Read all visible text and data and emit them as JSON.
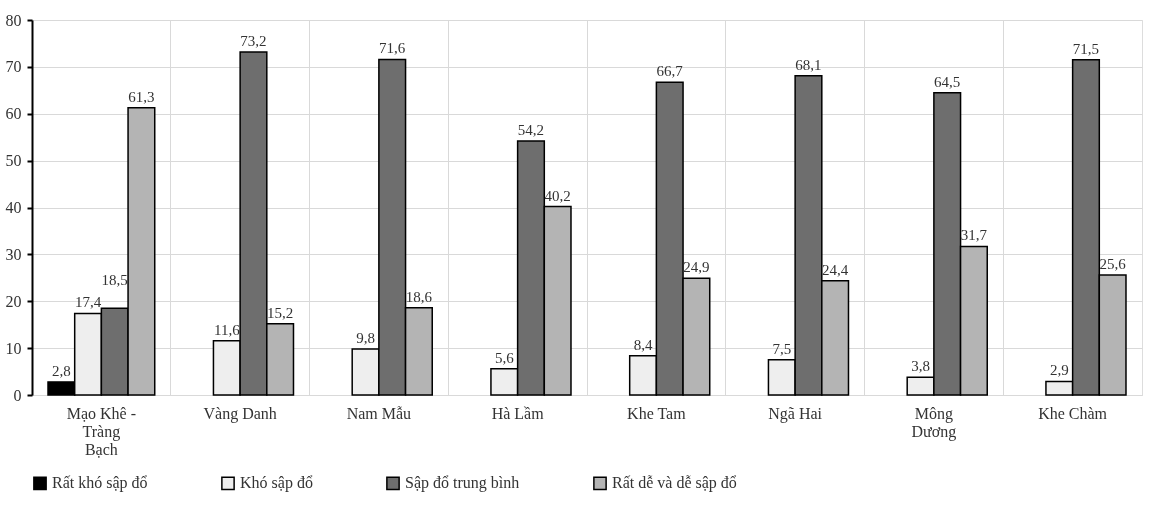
{
  "chart_data": {
    "type": "bar",
    "categories": [
      "Mạo Khê - Tràng Bạch",
      "Vàng Danh",
      "Nam Mẫu",
      "Hà Lầm",
      "Khe Tam",
      "Ngã Hai",
      "Mông Dương",
      "Khe Chàm"
    ],
    "series": [
      {
        "name": "Rất khó sập đổ",
        "color": "#000000",
        "values": [
          2.8,
          null,
          null,
          null,
          null,
          null,
          null,
          null
        ],
        "value_labels": [
          "2,8",
          null,
          null,
          null,
          null,
          null,
          null,
          null
        ]
      },
      {
        "name": "Khó sập đổ",
        "color": "#eeeeee",
        "values": [
          17.4,
          11.6,
          9.8,
          5.6,
          8.4,
          7.5,
          3.8,
          2.9
        ],
        "value_labels": [
          "17,4",
          "11,6",
          "9,8",
          "5,6",
          "8,4",
          "7,5",
          "3,8",
          "2,9"
        ]
      },
      {
        "name": "Sập đổ trung bình",
        "color": "#6e6e6e",
        "values": [
          18.5,
          73.2,
          71.6,
          54.2,
          66.7,
          68.1,
          64.5,
          71.5
        ],
        "value_labels": [
          "18,5",
          "73,2",
          "71,6",
          "54,2",
          "66,7",
          "68,1",
          "64,5",
          "71,5"
        ]
      },
      {
        "name": "Rất dễ và dễ sập đổ",
        "color": "#b4b4b4",
        "values": [
          61.3,
          15.2,
          18.6,
          40.2,
          24.9,
          24.4,
          31.7,
          25.6
        ],
        "value_labels": [
          "61,3",
          "15,2",
          "18,6",
          "40,2",
          "24,9",
          "24,4",
          "31,7",
          "25,6"
        ]
      }
    ],
    "ylim": [
      0,
      80
    ],
    "yticks": [
      0,
      10,
      20,
      30,
      40,
      50,
      60,
      70,
      80
    ],
    "grid": true,
    "legend": "bottom"
  }
}
